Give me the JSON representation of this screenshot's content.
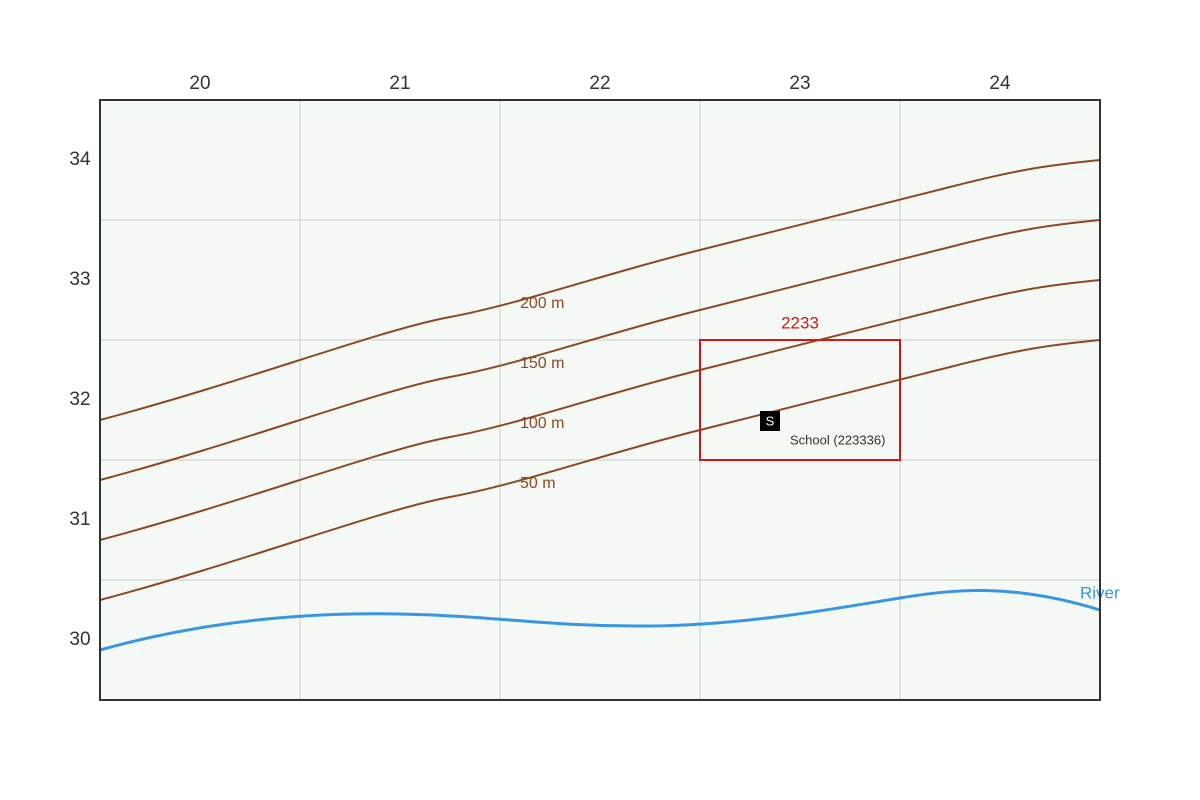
{
  "columns": [
    "20",
    "21",
    "22",
    "23",
    "24"
  ],
  "rows": [
    "34",
    "33",
    "32",
    "31",
    "30"
  ],
  "contours": [
    {
      "label": "200 m"
    },
    {
      "label": "150 m"
    },
    {
      "label": "100 m"
    },
    {
      "label": "50 m"
    }
  ],
  "highlight": {
    "label": "2233"
  },
  "school": {
    "symbol": "S",
    "label": "School (223336)"
  },
  "river": {
    "label": "River"
  }
}
